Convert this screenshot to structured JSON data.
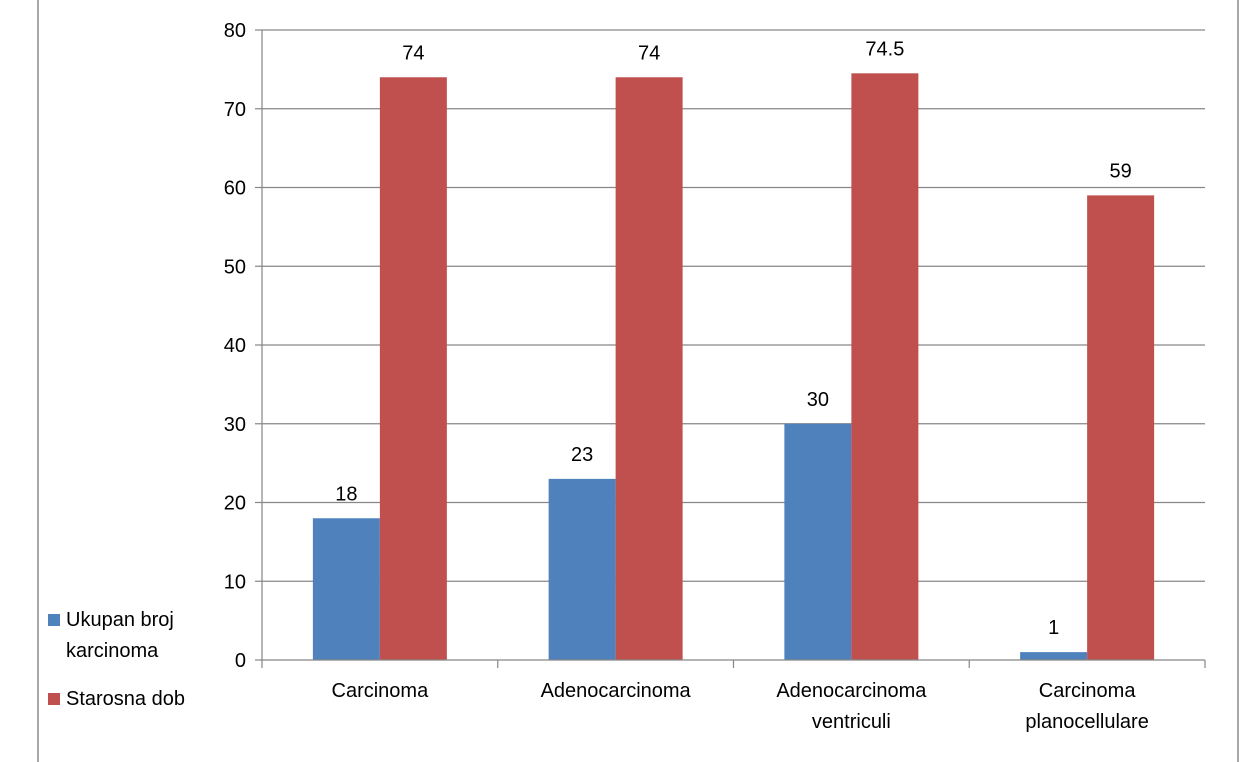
{
  "chart_data": {
    "type": "bar",
    "categories": [
      [
        "Carcinoma"
      ],
      [
        "Adenocarcinoma"
      ],
      [
        "Adenocarcinoma",
        "ventriculi"
      ],
      [
        "Carcinoma",
        "planocellulare"
      ]
    ],
    "series": [
      {
        "name": [
          "Ukupan broj",
          "karcinoma"
        ],
        "color": "#4f81bd",
        "values": [
          18,
          23,
          30,
          1
        ]
      },
      {
        "name": [
          "Starosna dob"
        ],
        "color": "#c0504d",
        "values": [
          74,
          74,
          74.5,
          59
        ]
      }
    ],
    "ylim": [
      0,
      80
    ],
    "yticks": [
      0,
      10,
      20,
      30,
      40,
      50,
      60,
      70,
      80
    ],
    "grid": true,
    "legend": "left-bottom"
  }
}
